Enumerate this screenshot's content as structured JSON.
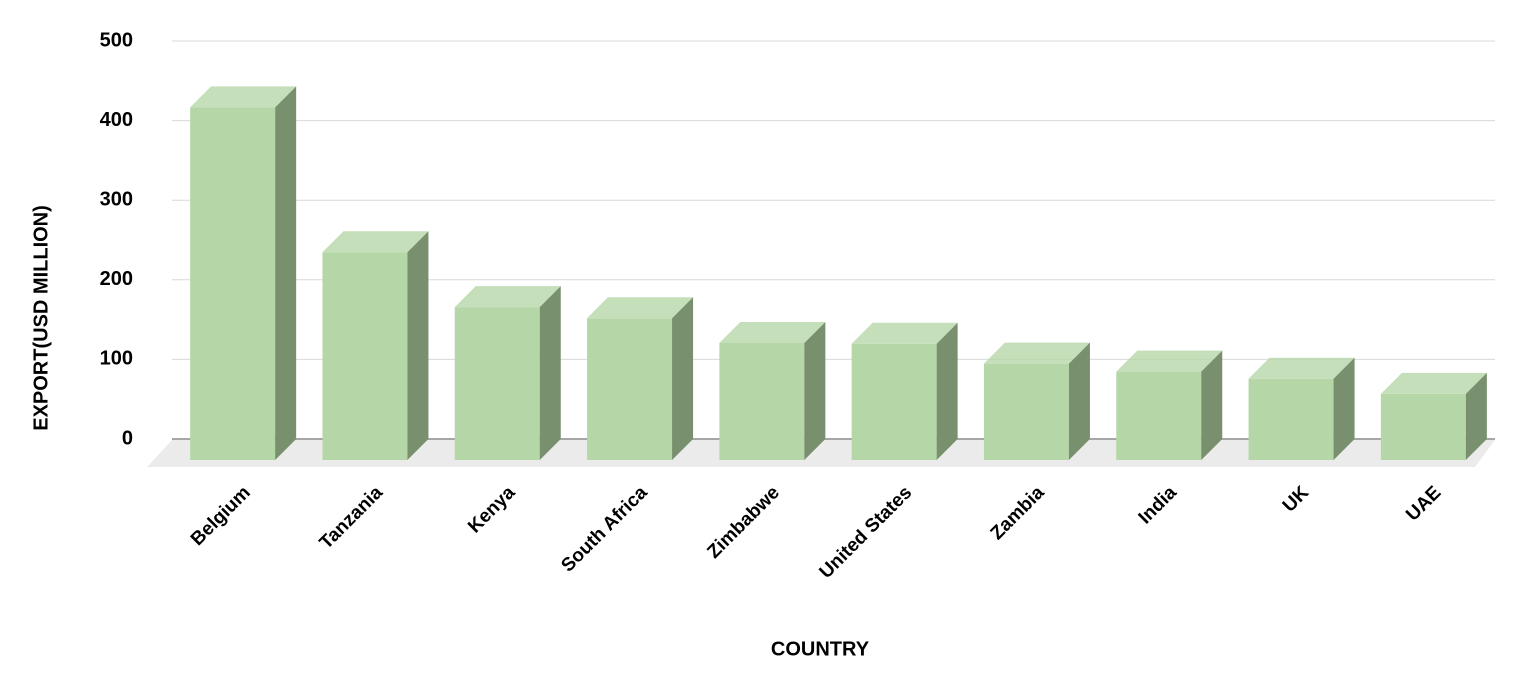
{
  "chart_data": {
    "type": "bar3d",
    "x_label": "COUNTRY",
    "y_label": "EXPORT(USD MILLION)",
    "categories": [
      "Belgium",
      "Tanzania",
      "Kenya",
      "South Africa",
      "Zimbabwe",
      "United States",
      "Zambia",
      "India",
      "UK",
      "UAE"
    ],
    "values": [
      443,
      261,
      192,
      178,
      147,
      146,
      121,
      111,
      102,
      83
    ],
    "color": "#b5d7a8",
    "ylim": [
      0,
      500
    ],
    "yticks": [
      0,
      100,
      200,
      300,
      400,
      500
    ],
    "grid": true
  }
}
